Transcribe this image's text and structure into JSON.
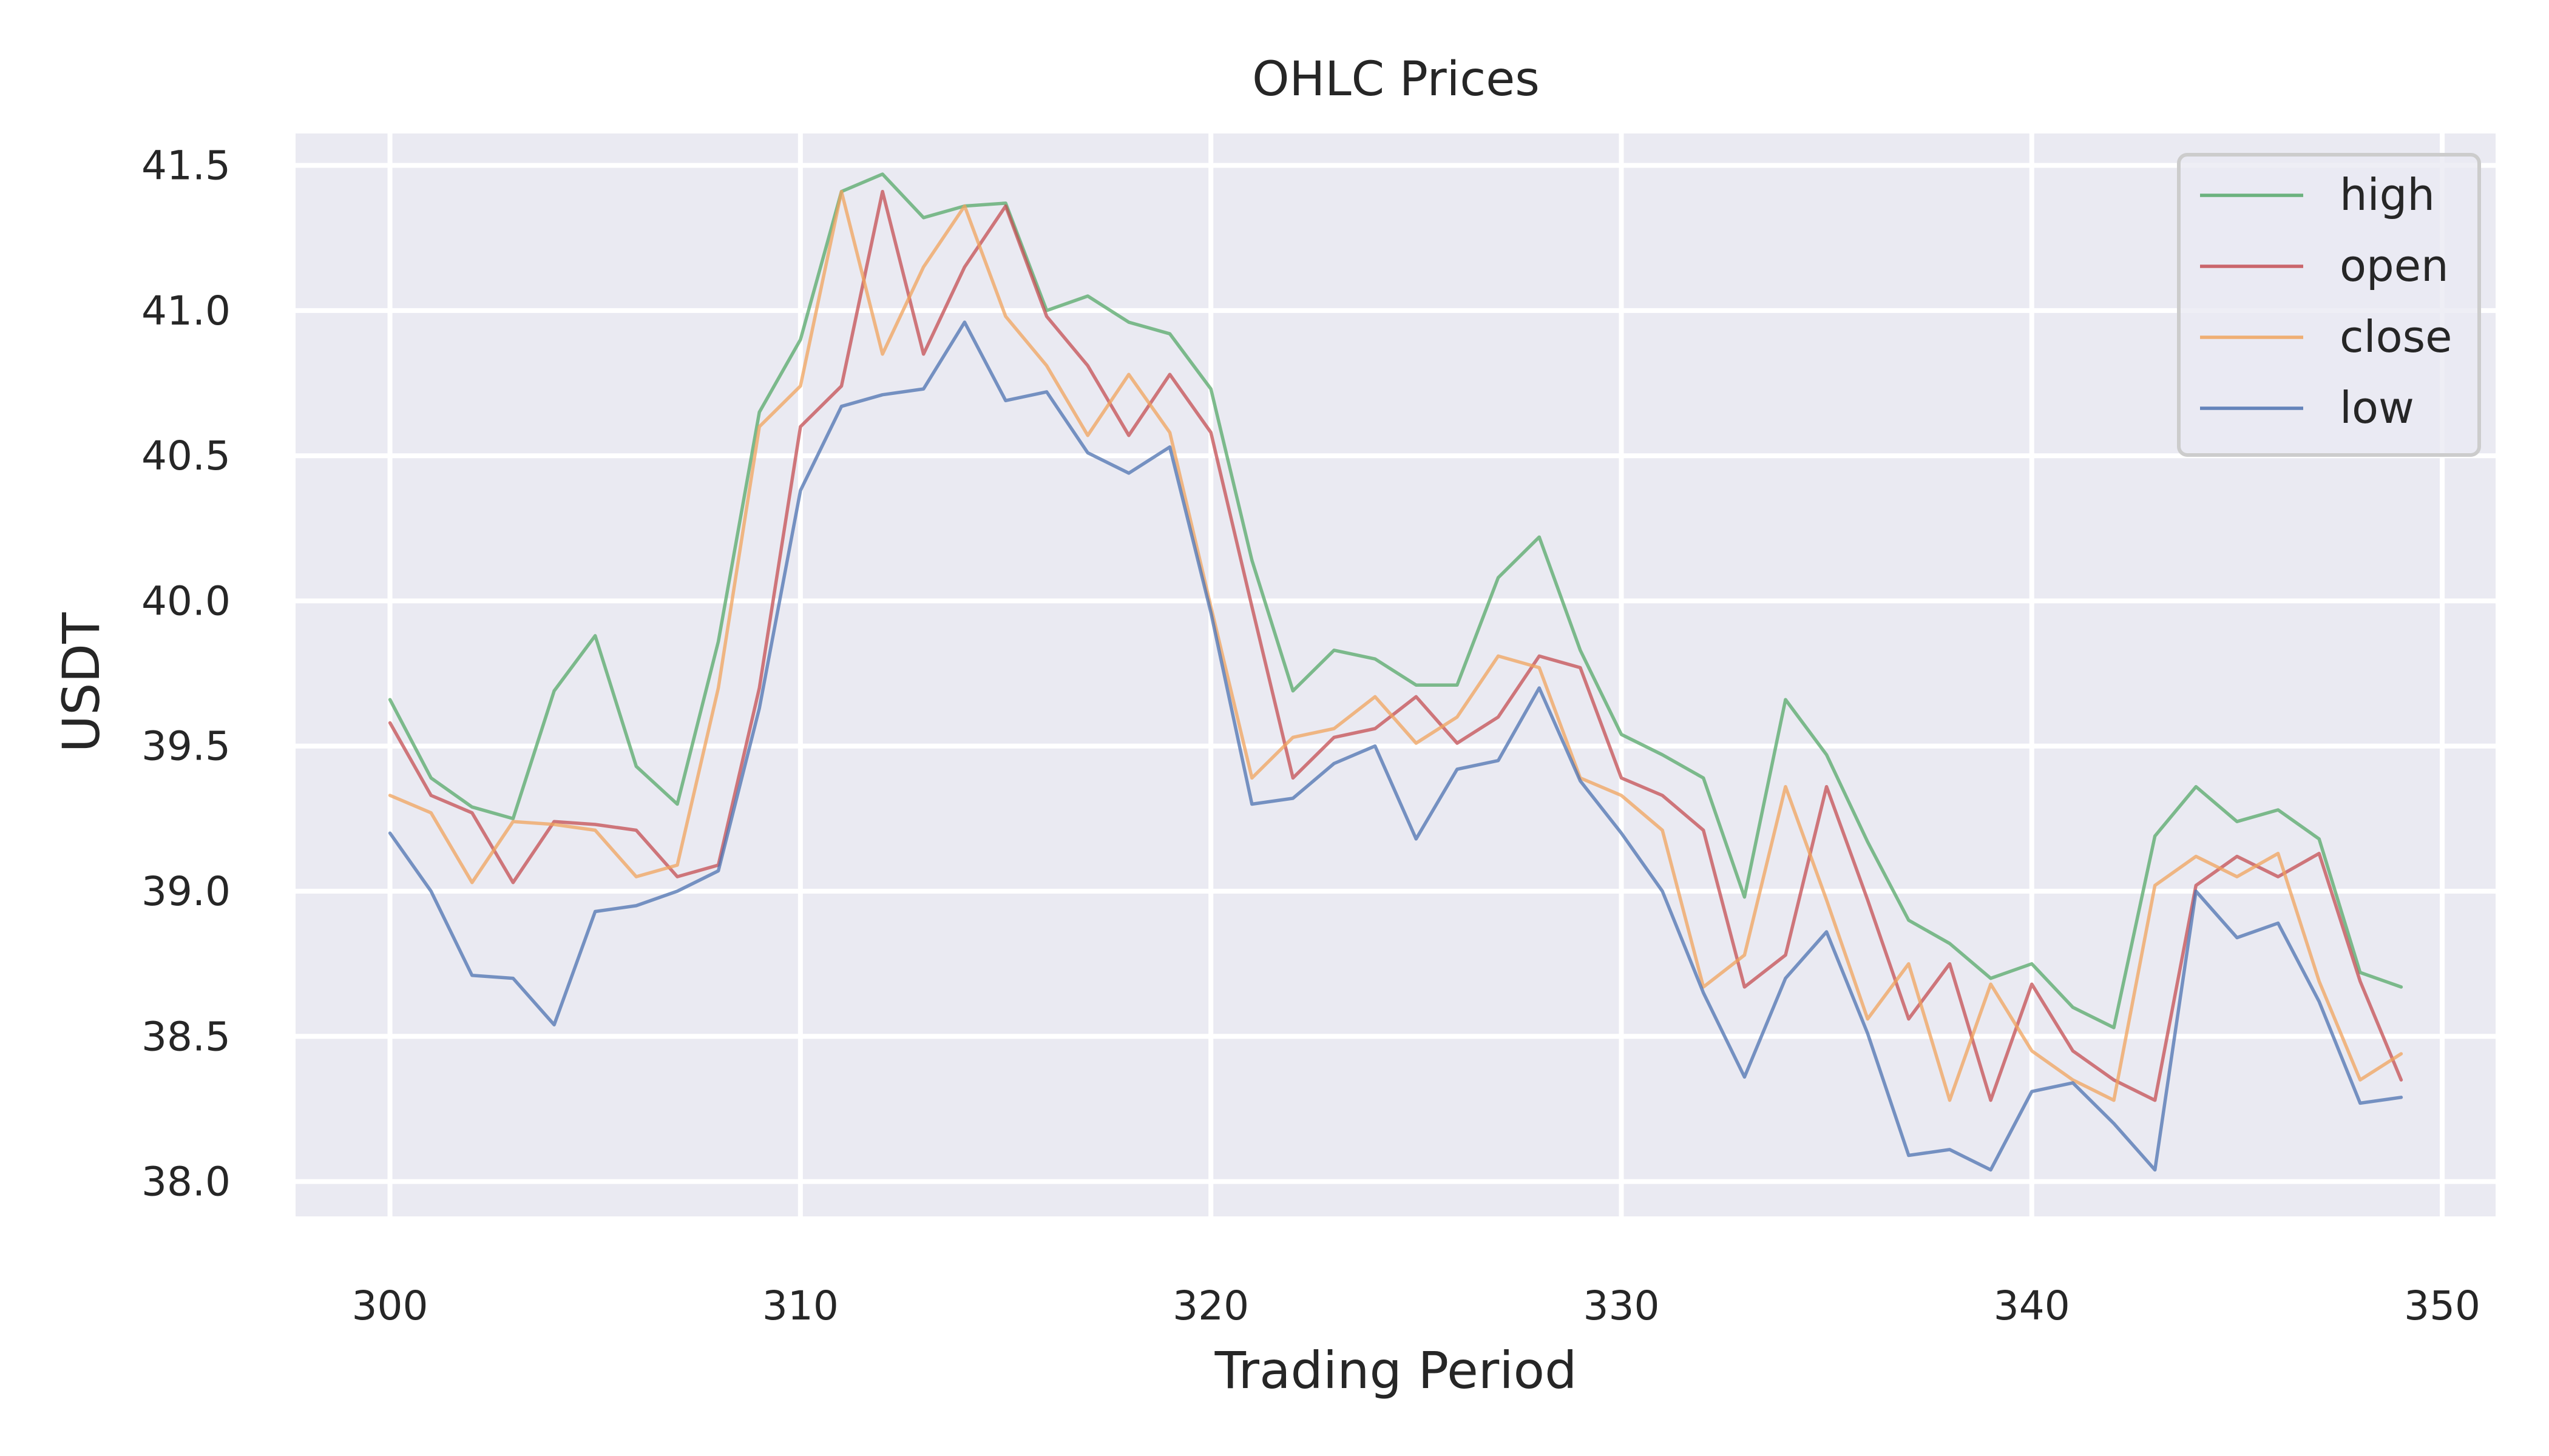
{
  "chart_data": {
    "type": "line",
    "title": "OHLC Prices",
    "xlabel": "Trading Period",
    "ylabel": "USDT",
    "xlim": [
      297.7,
      351.3
    ],
    "ylim": [
      37.88,
      41.61
    ],
    "xticks": [
      300,
      310,
      320,
      330,
      340,
      350
    ],
    "xtick_labels": [
      "300",
      "310",
      "320",
      "330",
      "340",
      "350"
    ],
    "yticks": [
      38.0,
      38.5,
      39.0,
      39.5,
      40.0,
      40.5,
      41.0,
      41.5
    ],
    "ytick_labels": [
      "38.0",
      "38.5",
      "39.0",
      "39.5",
      "40.0",
      "40.5",
      "41.0",
      "41.5"
    ],
    "grid": true,
    "legend_position": "top-right",
    "background_color": "#eaeaf2",
    "x": [
      300,
      301,
      302,
      303,
      304,
      305,
      306,
      307,
      308,
      309,
      310,
      311,
      312,
      313,
      314,
      315,
      316,
      317,
      318,
      319,
      320,
      321,
      322,
      323,
      324,
      325,
      326,
      327,
      328,
      329,
      330,
      331,
      332,
      333,
      334,
      335,
      336,
      337,
      338,
      339,
      340,
      341,
      342,
      343,
      344,
      345,
      346,
      347,
      348,
      349
    ],
    "series": [
      {
        "name": "high",
        "color": "#55a868",
        "values": [
          39.66,
          39.39,
          39.29,
          39.25,
          39.69,
          39.88,
          39.43,
          39.3,
          39.86,
          40.65,
          40.9,
          41.41,
          41.47,
          41.32,
          41.36,
          41.37,
          41.0,
          41.05,
          40.96,
          40.92,
          40.73,
          40.14,
          39.69,
          39.83,
          39.8,
          39.71,
          39.71,
          40.08,
          40.22,
          39.83,
          39.54,
          39.47,
          39.39,
          38.98,
          39.66,
          39.47,
          39.17,
          38.9,
          38.82,
          38.7,
          38.75,
          38.6,
          38.53,
          39.19,
          39.36,
          39.24,
          39.28,
          39.18,
          38.72,
          38.67
        ]
      },
      {
        "name": "open",
        "color": "#c44e52",
        "values": [
          39.58,
          39.33,
          39.27,
          39.03,
          39.24,
          39.23,
          39.21,
          39.05,
          39.09,
          39.7,
          40.6,
          40.74,
          41.41,
          40.85,
          41.15,
          41.36,
          40.98,
          40.81,
          40.57,
          40.78,
          40.58,
          39.98,
          39.39,
          39.53,
          39.56,
          39.67,
          39.51,
          39.6,
          39.81,
          39.77,
          39.39,
          39.33,
          39.21,
          38.67,
          38.78,
          39.36,
          38.97,
          38.56,
          38.75,
          38.28,
          38.68,
          38.45,
          38.35,
          38.28,
          39.02,
          39.12,
          39.05,
          39.13,
          38.69,
          38.35
        ]
      },
      {
        "name": "close",
        "color": "#f0a35c",
        "values": [
          39.33,
          39.27,
          39.03,
          39.24,
          39.23,
          39.21,
          39.05,
          39.09,
          39.7,
          40.6,
          40.74,
          41.41,
          40.85,
          41.15,
          41.36,
          40.98,
          40.81,
          40.57,
          40.78,
          40.58,
          39.98,
          39.39,
          39.53,
          39.56,
          39.67,
          39.51,
          39.6,
          39.81,
          39.77,
          39.39,
          39.33,
          39.21,
          38.67,
          38.78,
          39.36,
          38.97,
          38.56,
          38.75,
          38.28,
          38.68,
          38.45,
          38.35,
          38.28,
          39.02,
          39.12,
          39.05,
          39.13,
          38.69,
          38.35,
          38.44
        ]
      },
      {
        "name": "low",
        "color": "#4c72b0",
        "values": [
          39.2,
          39.0,
          38.71,
          38.7,
          38.54,
          38.93,
          38.95,
          39.0,
          39.07,
          39.63,
          40.38,
          40.67,
          40.71,
          40.73,
          40.96,
          40.69,
          40.72,
          40.51,
          40.44,
          40.53,
          39.96,
          39.3,
          39.32,
          39.44,
          39.5,
          39.18,
          39.42,
          39.45,
          39.7,
          39.38,
          39.2,
          39.0,
          38.65,
          38.36,
          38.7,
          38.86,
          38.51,
          38.09,
          38.11,
          38.04,
          38.31,
          38.34,
          38.2,
          38.04,
          39.0,
          38.84,
          38.89,
          38.62,
          38.27,
          38.29
        ]
      }
    ]
  }
}
